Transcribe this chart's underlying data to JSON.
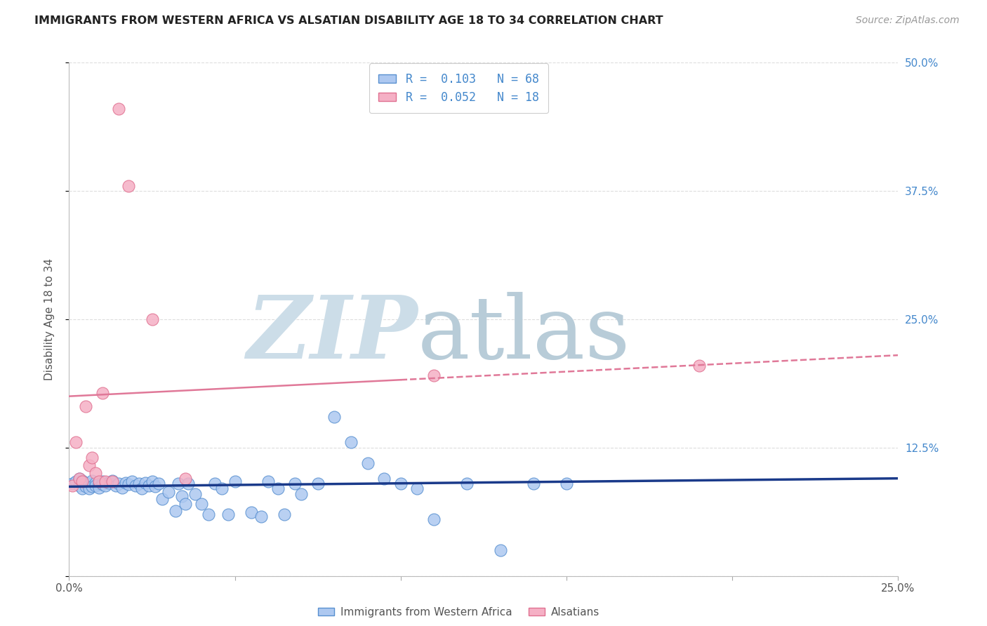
{
  "title": "IMMIGRANTS FROM WESTERN AFRICA VS ALSATIAN DISABILITY AGE 18 TO 34 CORRELATION CHART",
  "source": "Source: ZipAtlas.com",
  "ylabel": "Disability Age 18 to 34",
  "xlim": [
    0.0,
    0.25
  ],
  "ylim": [
    0.0,
    0.5
  ],
  "xticks": [
    0.0,
    0.05,
    0.1,
    0.15,
    0.2,
    0.25
  ],
  "yticks": [
    0.0,
    0.125,
    0.25,
    0.375,
    0.5
  ],
  "xtick_labels": [
    "0.0%",
    "",
    "",
    "",
    "",
    "25.0%"
  ],
  "ytick_labels_right": [
    "",
    "12.5%",
    "25.0%",
    "37.5%",
    "50.0%"
  ],
  "legend_line1": "R =  0.103   N = 68",
  "legend_line2": "R =  0.052   N = 18",
  "blue_color": "#adc8f0",
  "blue_edge": "#5890d0",
  "pink_color": "#f5b0c5",
  "pink_edge": "#e07090",
  "trend_blue": "#1a3a8a",
  "trend_pink": "#e07898",
  "watermark_zip_color": "#ccdde8",
  "watermark_atlas_color": "#b8ccd8",
  "grid_color": "#dddddd",
  "title_color": "#222222",
  "source_color": "#999999",
  "label_color": "#555555",
  "tick_color_right": "#4488cc",
  "blue_scatter_x": [
    0.001,
    0.002,
    0.003,
    0.003,
    0.004,
    0.004,
    0.005,
    0.005,
    0.006,
    0.006,
    0.007,
    0.007,
    0.008,
    0.008,
    0.009,
    0.009,
    0.01,
    0.01,
    0.011,
    0.012,
    0.013,
    0.014,
    0.015,
    0.016,
    0.017,
    0.018,
    0.019,
    0.02,
    0.021,
    0.022,
    0.023,
    0.024,
    0.025,
    0.026,
    0.027,
    0.028,
    0.03,
    0.032,
    0.033,
    0.034,
    0.035,
    0.036,
    0.038,
    0.04,
    0.042,
    0.044,
    0.046,
    0.048,
    0.05,
    0.055,
    0.058,
    0.06,
    0.063,
    0.065,
    0.068,
    0.07,
    0.075,
    0.08,
    0.085,
    0.09,
    0.095,
    0.1,
    0.105,
    0.11,
    0.12,
    0.13,
    0.14,
    0.15
  ],
  "blue_scatter_y": [
    0.09,
    0.092,
    0.088,
    0.095,
    0.093,
    0.085,
    0.091,
    0.087,
    0.09,
    0.085,
    0.093,
    0.087,
    0.091,
    0.088,
    0.09,
    0.086,
    0.092,
    0.089,
    0.088,
    0.091,
    0.093,
    0.088,
    0.09,
    0.086,
    0.091,
    0.089,
    0.092,
    0.088,
    0.09,
    0.085,
    0.091,
    0.088,
    0.092,
    0.087,
    0.09,
    0.075,
    0.082,
    0.063,
    0.09,
    0.078,
    0.07,
    0.09,
    0.08,
    0.07,
    0.06,
    0.09,
    0.085,
    0.06,
    0.092,
    0.062,
    0.058,
    0.092,
    0.085,
    0.06,
    0.09,
    0.08,
    0.09,
    0.155,
    0.13,
    0.11,
    0.095,
    0.09,
    0.085,
    0.055,
    0.09,
    0.025,
    0.09,
    0.09
  ],
  "pink_scatter_x": [
    0.001,
    0.002,
    0.003,
    0.004,
    0.005,
    0.006,
    0.007,
    0.008,
    0.009,
    0.01,
    0.011,
    0.013,
    0.015,
    0.018,
    0.025,
    0.035,
    0.11,
    0.19
  ],
  "pink_scatter_y": [
    0.088,
    0.13,
    0.095,
    0.092,
    0.165,
    0.108,
    0.115,
    0.1,
    0.092,
    0.178,
    0.092,
    0.092,
    0.455,
    0.38,
    0.25,
    0.095,
    0.195,
    0.205
  ],
  "blue_trend_x0": 0.0,
  "blue_trend_x1": 0.25,
  "blue_trend_y0": 0.087,
  "blue_trend_y1": 0.095,
  "pink_trend_solid_x0": 0.0,
  "pink_trend_solid_x1": 0.1,
  "pink_trend_solid_y0": 0.175,
  "pink_trend_solid_y1": 0.191,
  "pink_trend_dash_x0": 0.1,
  "pink_trend_dash_x1": 0.25,
  "pink_trend_dash_y0": 0.191,
  "pink_trend_dash_y1": 0.215
}
